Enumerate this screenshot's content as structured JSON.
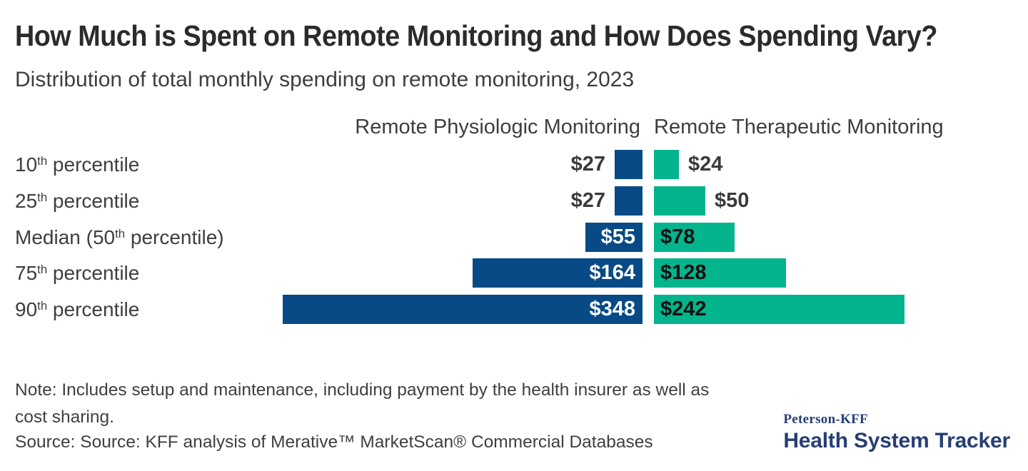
{
  "header": {
    "title": "How Much is Spent on Remote Monitoring and How Does Spending Vary?",
    "subtitle": "Distribution of total monthly spending on remote monitoring, 2023"
  },
  "chart_data": {
    "type": "bar",
    "orientation": "diverging-horizontal",
    "title": "How Much is Spent on Remote Monitoring and How Does Spending Vary?",
    "subtitle": "Distribution of total monthly spending on remote monitoring, 2023",
    "unit": "US dollars per month",
    "categories": [
      {
        "prefix": "10",
        "sup": "th",
        "suffix": " percentile"
      },
      {
        "prefix": "25",
        "sup": "th",
        "suffix": " percentile"
      },
      {
        "prefix": "Median (50",
        "sup": "th",
        "suffix": " percentile)"
      },
      {
        "prefix": "75",
        "sup": "th",
        "suffix": " percentile"
      },
      {
        "prefix": "90",
        "sup": "th",
        "suffix": " percentile"
      }
    ],
    "series": [
      {
        "name": "Remote Physiologic Monitoring",
        "side": "left",
        "color": "#074a85",
        "values": [
          27,
          27,
          55,
          164,
          348
        ],
        "labels": [
          "$27",
          "$27",
          "$55",
          "$164",
          "$348"
        ],
        "inside_label_color": "#ffffff"
      },
      {
        "name": "Remote Therapeutic Monitoring",
        "side": "right",
        "color": "#04b48c",
        "values": [
          24,
          50,
          78,
          128,
          242
        ],
        "labels": [
          "$24",
          "$50",
          "$78",
          "$128",
          "$242"
        ],
        "inside_label_color": "#101010"
      }
    ],
    "axis_range_per_side": [
      0,
      360
    ],
    "grid": false,
    "legend_position": "column-headers"
  },
  "footer": {
    "note_line1": "Note: Includes setup and maintenance, including payment by the health insurer as well as",
    "note_line2": "cost sharing.",
    "source": "Source: Source: KFF analysis of Merative™ MarketScan® Commercial Databases",
    "logo": {
      "brand_top": "Peterson-KFF",
      "brand_bottom": "Health System Tracker",
      "color": "#263e72"
    }
  },
  "colors": {
    "background": "#ffffff",
    "title_text": "#2b2b2b",
    "body_text": "#3e3e3e",
    "physiologic_blue": "#074a85",
    "therapeutic_green": "#04b48c",
    "logo_navy": "#263e72"
  }
}
